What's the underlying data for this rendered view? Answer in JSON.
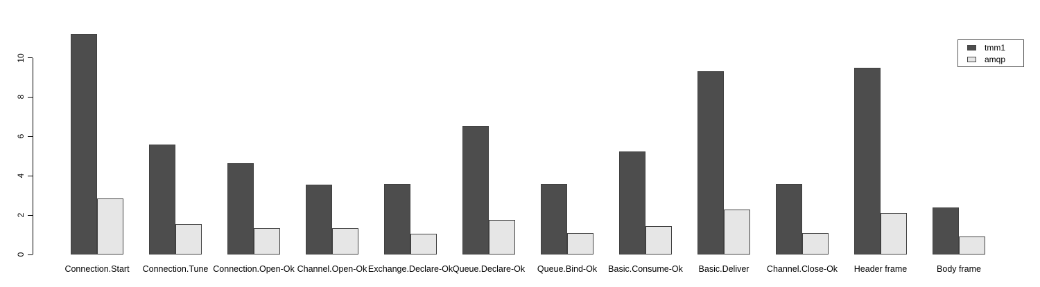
{
  "chart_data": {
    "type": "bar",
    "title": "",
    "xlabel": "",
    "ylabel": "",
    "grid": false,
    "legend_position": "top-right",
    "background_color": "#ffffff",
    "axis_color": "#000000",
    "bar_border_color": "#404040",
    "ylim": [
      0,
      11.4
    ],
    "yticks": [
      0,
      2,
      4,
      6,
      8,
      10
    ],
    "categories": [
      "Connection.Start",
      "Connection.Tune",
      "Connection.Open-Ok",
      "Channel.Open-Ok",
      "Exchange.Declare-Ok",
      "Queue.Declare-Ok",
      "Queue.Bind-Ok",
      "Basic.Consume-Ok",
      "Basic.Deliver",
      "Channel.Close-Ok",
      "Header frame",
      "Body frame"
    ],
    "series": [
      {
        "name": "tmm1",
        "color": "#4D4D4D",
        "values": [
          11.2,
          5.6,
          4.65,
          3.55,
          3.6,
          6.55,
          3.6,
          5.25,
          9.3,
          3.6,
          9.5,
          2.4
        ]
      },
      {
        "name": "amqp",
        "color": "#E6E6E6",
        "values": [
          2.85,
          1.55,
          1.35,
          1.35,
          1.05,
          1.75,
          1.1,
          1.45,
          2.3,
          1.1,
          2.1,
          0.9
        ]
      }
    ]
  }
}
